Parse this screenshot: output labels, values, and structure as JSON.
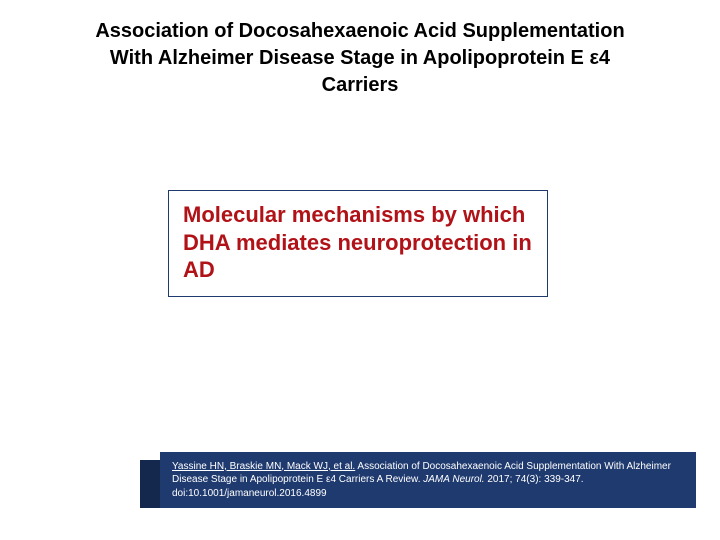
{
  "colors": {
    "background": "#ffffff",
    "title_text": "#000000",
    "callout_border": "#1f3a6f",
    "callout_text": "#b01217",
    "band_bg": "#1f3a6f",
    "band_text": "#ffffff",
    "accent_bg": "#14284d"
  },
  "title": "Association of Docosahexaenoic Acid Supplementation With Alzheimer Disease Stage in Apolipoprotein E ε4 Carriers",
  "callout": "Molecular mechanisms by which DHA mediates neuroprotection in AD",
  "citation": {
    "authors": "Yassine HN, Braskie MN, Mack WJ, et al.",
    "article_title": " Association of Docosahexaenoic Acid Supplementation With Alzheimer Disease Stage in Apolipoprotein E ε4 Carriers A Review. ",
    "journal": "JAMA Neurol.",
    "rest": " 2017; 74(3): 339-347. doi:10.1001/jamaneurol.2016.4899"
  }
}
